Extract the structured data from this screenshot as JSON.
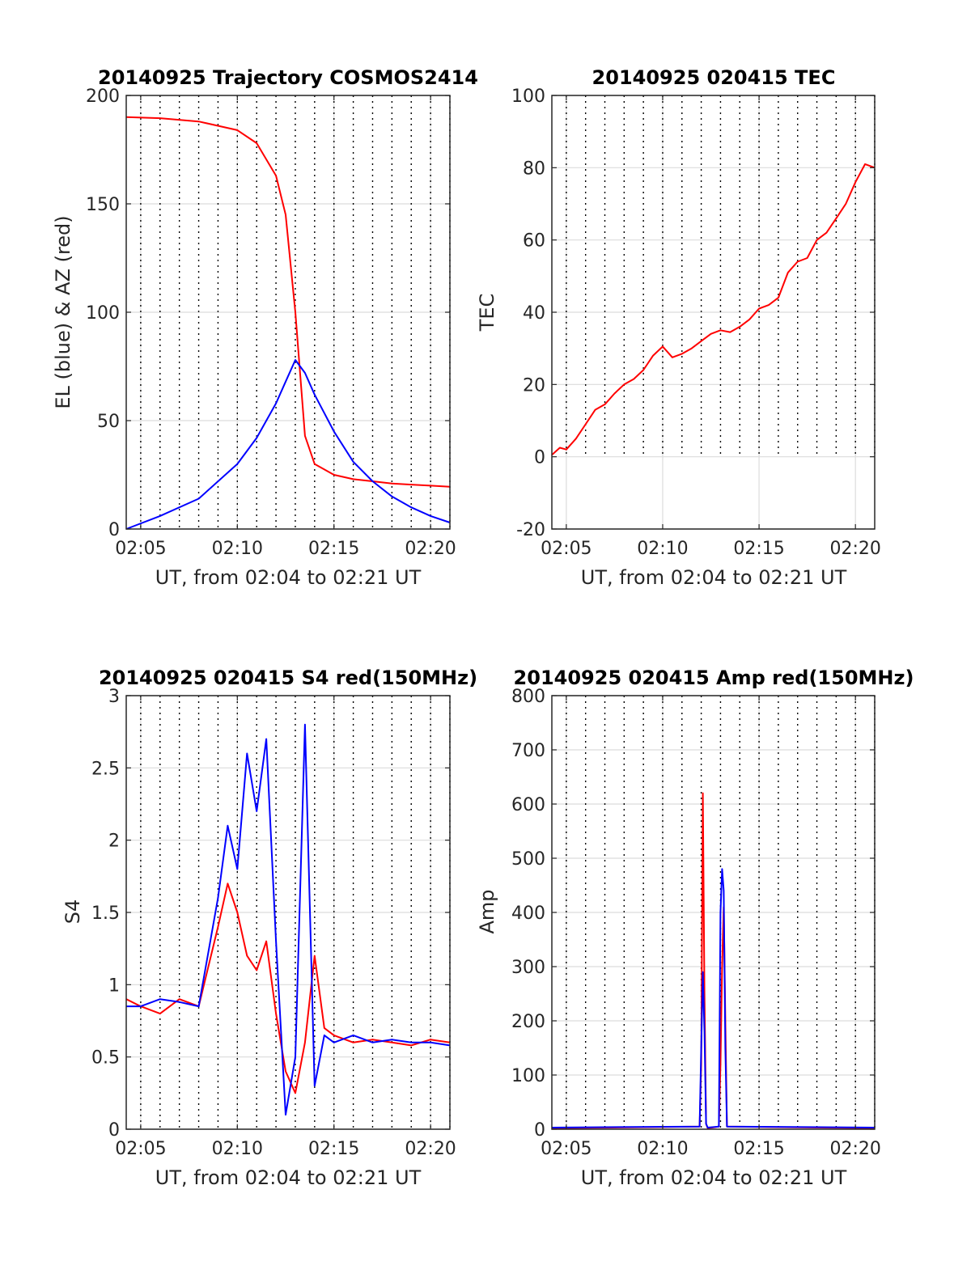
{
  "colors": {
    "az": "#ff0000",
    "el": "#0000ff",
    "tec": "#ff0000",
    "series_red": "#ff0000",
    "series_blue": "#0000ff",
    "grid": "#dcdcdc",
    "minor_grid": "#000000",
    "axis": "#262626"
  },
  "chart_data": [
    {
      "type": "line",
      "title": "20140925 Trajectory COSMOS2414",
      "xlabel": "UT, from 02:04 to 02:21 UT",
      "ylabel": "EL (blue) & AZ (red)",
      "xlim": [
        "02:04:15",
        "02:21:00"
      ],
      "ylim": [
        0,
        200
      ],
      "x_ticks": [
        "02:05",
        "02:10",
        "02:15",
        "02:20"
      ],
      "y_ticks": [
        0,
        50,
        100,
        150,
        200
      ],
      "grid": true,
      "minor_grid": "dotted vertical lines every 1 minute",
      "x": [
        "02:04:15",
        "02:06:00",
        "02:08:00",
        "02:10:00",
        "02:11:00",
        "02:12:00",
        "02:12:30",
        "02:13:00",
        "02:13:30",
        "02:14:00",
        "02:15:00",
        "02:16:00",
        "02:17:00",
        "02:18:00",
        "02:19:00",
        "02:20:00",
        "02:21:00"
      ],
      "series": [
        {
          "name": "AZ (red)",
          "color": "red",
          "values": [
            190,
            189.5,
            188,
            184,
            178,
            163,
            145,
            100,
            43,
            30,
            25,
            23,
            22,
            21,
            20.5,
            20,
            19.5
          ]
        },
        {
          "name": "EL (blue)",
          "color": "blue",
          "values": [
            0,
            6,
            14,
            30,
            42,
            58,
            68,
            78,
            72,
            62,
            45,
            31,
            22,
            15,
            10,
            6,
            3
          ]
        }
      ]
    },
    {
      "type": "line",
      "title": "20140925 020415 TEC",
      "xlabel": "UT, from 02:04 to 02:21 UT",
      "ylabel": "TEC",
      "xlim": [
        "02:04:15",
        "02:21:00"
      ],
      "ylim": [
        -20,
        100
      ],
      "x_ticks": [
        "02:05",
        "02:10",
        "02:15",
        "02:20"
      ],
      "y_ticks": [
        -20,
        0,
        20,
        40,
        60,
        80,
        100
      ],
      "grid": true,
      "minor_grid": "dotted vertical lines every 1 minute (only above 0)",
      "x": [
        "02:04:15",
        "02:04:40",
        "02:05:00",
        "02:05:30",
        "02:06:00",
        "02:06:30",
        "02:07:00",
        "02:07:30",
        "02:08:00",
        "02:08:30",
        "02:09:00",
        "02:09:30",
        "02:10:00",
        "02:10:30",
        "02:11:00",
        "02:11:30",
        "02:12:00",
        "02:12:30",
        "02:13:00",
        "02:13:30",
        "02:14:00",
        "02:14:30",
        "02:15:00",
        "02:15:30",
        "02:16:00",
        "02:16:30",
        "02:17:00",
        "02:17:30",
        "02:18:00",
        "02:18:30",
        "02:19:00",
        "02:19:30",
        "02:20:00",
        "02:20:30",
        "02:21:00"
      ],
      "series": [
        {
          "name": "TEC",
          "color": "red",
          "values": [
            0.5,
            2.5,
            2,
            5,
            9,
            13,
            14.5,
            17.5,
            20,
            21.5,
            24,
            28,
            30.5,
            27.5,
            28.5,
            30,
            32,
            34,
            35,
            34.5,
            36,
            38,
            41,
            42,
            44,
            51,
            54,
            55,
            60,
            62,
            66,
            70,
            76,
            81,
            80
          ]
        }
      ]
    },
    {
      "type": "line",
      "title": "20140925 020415 S4 red(150MHz)",
      "xlabel": "UT, from 02:04 to 02:21 UT",
      "ylabel": "S4",
      "xlim": [
        "02:04:15",
        "02:21:00"
      ],
      "ylim": [
        0,
        3
      ],
      "x_ticks": [
        "02:05",
        "02:10",
        "02:15",
        "02:20"
      ],
      "y_ticks": [
        0,
        0.5,
        1,
        1.5,
        2,
        2.5,
        3
      ],
      "grid": true,
      "minor_grid": "dotted vertical lines every 1 minute",
      "x": [
        "02:04:15",
        "02:05:00",
        "02:06:00",
        "02:07:00",
        "02:08:00",
        "02:09:00",
        "02:09:30",
        "02:10:00",
        "02:10:30",
        "02:11:00",
        "02:11:30",
        "02:12:00",
        "02:12:30",
        "02:13:00",
        "02:13:30",
        "02:14:00",
        "02:14:30",
        "02:15:00",
        "02:16:00",
        "02:17:00",
        "02:18:00",
        "02:19:00",
        "02:20:00",
        "02:21:00"
      ],
      "series": [
        {
          "name": "red (150MHz)",
          "color": "red",
          "values": [
            0.9,
            0.85,
            0.8,
            0.9,
            0.85,
            1.4,
            1.7,
            1.5,
            1.2,
            1.1,
            1.3,
            0.8,
            0.4,
            0.25,
            0.6,
            1.2,
            0.7,
            0.65,
            0.6,
            0.62,
            0.6,
            0.58,
            0.62,
            0.6
          ]
        },
        {
          "name": "blue",
          "color": "blue",
          "values": [
            0.85,
            0.85,
            0.9,
            0.88,
            0.85,
            1.6,
            2.1,
            1.8,
            2.6,
            2.2,
            2.7,
            1.3,
            0.1,
            0.5,
            2.8,
            0.3,
            0.65,
            0.6,
            0.65,
            0.6,
            0.62,
            0.6,
            0.6,
            0.58
          ]
        }
      ]
    },
    {
      "type": "line",
      "title": "20140925 020415 Amp red(150MHz)",
      "xlabel": "UT, from 02:04 to 02:21 UT",
      "ylabel": "Amp",
      "xlim": [
        "02:04:15",
        "02:21:00"
      ],
      "ylim": [
        0,
        800
      ],
      "x_ticks": [
        "02:05",
        "02:10",
        "02:15",
        "02:20"
      ],
      "y_ticks": [
        0,
        100,
        200,
        300,
        400,
        500,
        600,
        700,
        800
      ],
      "grid": true,
      "minor_grid": "dotted vertical lines every 1 minute",
      "x": [
        "02:04:15",
        "02:11:55",
        "02:12:00",
        "02:12:05",
        "02:12:10",
        "02:12:15",
        "02:12:20",
        "02:12:55",
        "02:13:00",
        "02:13:05",
        "02:13:10",
        "02:13:15",
        "02:13:20",
        "02:21:00"
      ],
      "series": [
        {
          "name": "red (150MHz)",
          "color": "red",
          "values": [
            2,
            5,
            120,
            620,
            250,
            10,
            2,
            5,
            120,
            300,
            410,
            200,
            5,
            2
          ]
        },
        {
          "name": "blue",
          "color": "blue",
          "values": [
            3,
            5,
            150,
            290,
            180,
            10,
            3,
            5,
            400,
            480,
            440,
            150,
            5,
            3
          ]
        }
      ]
    }
  ]
}
